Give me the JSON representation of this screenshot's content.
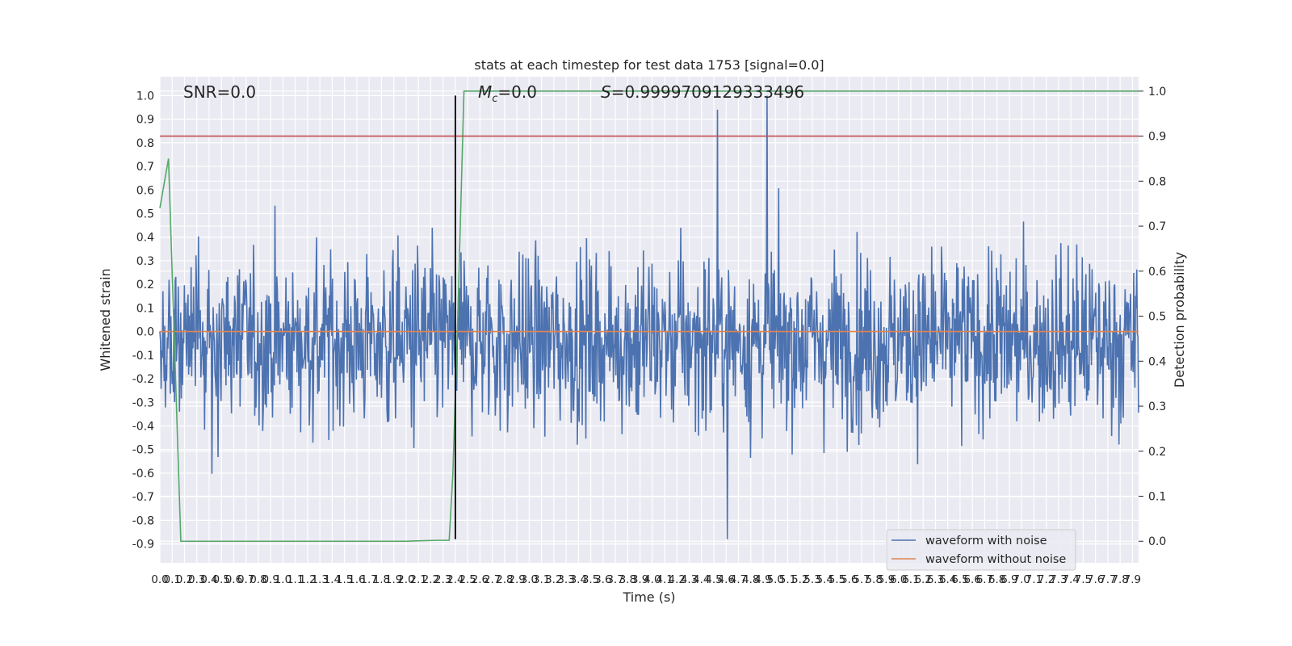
{
  "chart_data": {
    "type": "line",
    "title": "stats at each timestep for test data 1753 [signal=0.0]",
    "xlabel": "Time (s)",
    "ylabel_left": "Whitened strain",
    "ylabel_right": "Detection probability",
    "xlim": [
      0.0,
      7.95
    ],
    "ylim_left": [
      -0.98,
      1.08
    ],
    "ylim_right": [
      -0.048,
      1.032
    ],
    "x_ticks": [
      0.0,
      0.1,
      0.2,
      0.3,
      0.4,
      0.5,
      0.6,
      0.7,
      0.8,
      0.9,
      1.0,
      1.1,
      1.2,
      1.3,
      1.4,
      1.5,
      1.6,
      1.7,
      1.8,
      1.9,
      2.0,
      2.1,
      2.2,
      2.3,
      2.4,
      2.5,
      2.6,
      2.7,
      2.8,
      2.9,
      3.0,
      3.1,
      3.2,
      3.3,
      3.4,
      3.5,
      3.6,
      3.7,
      3.8,
      3.9,
      4.0,
      4.1,
      4.2,
      4.3,
      4.4,
      4.5,
      4.6,
      4.7,
      4.8,
      4.9,
      5.0,
      5.1,
      5.2,
      5.3,
      5.4,
      5.5,
      5.6,
      5.7,
      5.8,
      5.9,
      6.0,
      6.1,
      6.2,
      6.3,
      6.4,
      6.5,
      6.6,
      6.7,
      6.8,
      6.9,
      7.0,
      7.1,
      7.2,
      7.3,
      7.4,
      7.5,
      7.6,
      7.7,
      7.8,
      7.9
    ],
    "y_ticks_left": [
      -0.9,
      -0.8,
      -0.7,
      -0.6,
      -0.5,
      -0.4,
      -0.3,
      -0.2,
      -0.1,
      0.0,
      0.1,
      0.2,
      0.3,
      0.4,
      0.5,
      0.6,
      0.7,
      0.8,
      0.9,
      1.0
    ],
    "y_ticks_right": [
      0.0,
      0.1,
      0.2,
      0.3,
      0.4,
      0.5,
      0.6,
      0.7,
      0.8,
      0.9,
      1.0
    ],
    "grid": true,
    "legend_position": "lower-right",
    "series": [
      {
        "name": "waveform with noise",
        "axis": "left",
        "color": "#4c72b0",
        "noise": {
          "n_samples": 1600,
          "x_start": 0.0,
          "x_end": 7.95,
          "typical_range": [
            -0.55,
            0.45
          ],
          "extreme_max": 1.0,
          "extreme_min": -0.88
        }
      },
      {
        "name": "waveform without noise",
        "axis": "left",
        "color": "#dd8452",
        "x": [
          0.0,
          7.95
        ],
        "y": [
          0.0,
          0.0
        ]
      },
      {
        "axis": "right",
        "color": "#55a868",
        "x": [
          0.0,
          0.07,
          0.17,
          0.2,
          0.5,
          1.0,
          1.5,
          2.0,
          2.25,
          2.35,
          2.38,
          2.42,
          2.47,
          7.95
        ],
        "y": [
          0.74,
          0.85,
          0.0,
          0.0,
          0.0,
          0.0,
          0.0,
          0.0,
          0.002,
          0.002,
          0.15,
          0.5,
          1.0,
          1.0
        ]
      },
      {
        "axis": "right",
        "color": "#c44e52",
        "x": [
          0.0,
          7.95
        ],
        "y": [
          0.9,
          0.9
        ]
      }
    ],
    "vline": {
      "x": 2.4,
      "y_range": [
        -0.88,
        1.0
      ],
      "color": "#000000"
    },
    "annotations": {
      "snr": "SNR=0.0",
      "mc_symbol": "M",
      "mc_sub": "c",
      "mc_value": "=0.0",
      "s_symbol": "S",
      "s_value": "=0.9999709129333496"
    },
    "colors": {
      "plot_bg": "#eaeaf2",
      "grid": "#ffffff"
    }
  }
}
